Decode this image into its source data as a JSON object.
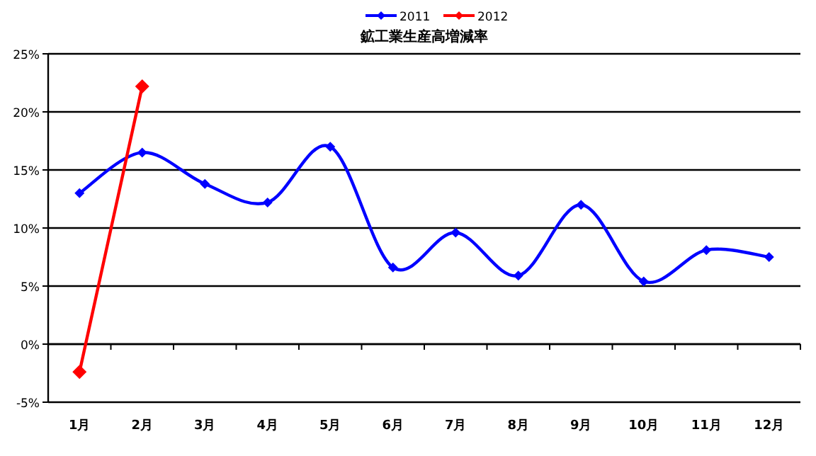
{
  "chart_data": {
    "type": "line",
    "title": "鉱工業生産高増減率",
    "categories": [
      "1月",
      "2月",
      "3月",
      "4月",
      "5月",
      "6月",
      "7月",
      "8月",
      "9月",
      "10月",
      "11月",
      "12月"
    ],
    "series": [
      {
        "name": "2011",
        "color": "#0000ff",
        "values": [
          13.0,
          16.5,
          13.8,
          12.2,
          17.0,
          6.6,
          9.6,
          5.9,
          12.0,
          5.4,
          8.1,
          7.5
        ]
      },
      {
        "name": "2012",
        "color": "#ff0000",
        "values": [
          -2.4,
          22.2,
          null,
          null,
          null,
          null,
          null,
          null,
          null,
          null,
          null,
          null
        ]
      }
    ],
    "ylim": [
      -5,
      25
    ],
    "yticks": [
      {
        "value": -5,
        "label": "-5%"
      },
      {
        "value": 0,
        "label": "0%"
      },
      {
        "value": 5,
        "label": "5%"
      },
      {
        "value": 10,
        "label": "10%"
      },
      {
        "value": 15,
        "label": "15%"
      },
      {
        "value": 20,
        "label": "20%"
      },
      {
        "value": 25,
        "label": "25%"
      }
    ],
    "grid": "y",
    "legend": "top",
    "marker": "diamond",
    "line_style": "solid"
  }
}
